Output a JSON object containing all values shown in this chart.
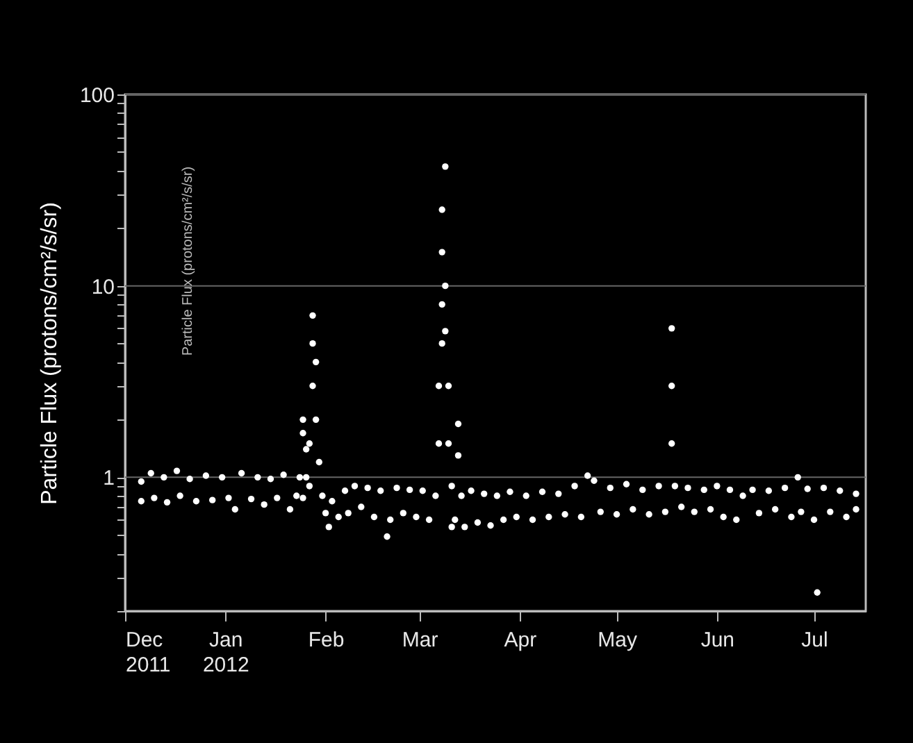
{
  "chart_data": {
    "type": "scatter",
    "ylabel": "Particle Flux (protons/cm²/s/sr)",
    "annotations": [
      "Particle Flux (protons/cm²/s/sr)"
    ],
    "log": "y",
    "grid": "y",
    "marker": "circle",
    "ylim": [
      0.2,
      100
    ],
    "yticks": [
      {
        "value": 0.2,
        "label": null
      },
      {
        "value": 0.3,
        "label": null
      },
      {
        "value": 0.4,
        "label": null
      },
      {
        "value": 0.5,
        "label": null
      },
      {
        "value": 0.6,
        "label": null
      },
      {
        "value": 0.7,
        "label": null
      },
      {
        "value": 0.8,
        "label": null
      },
      {
        "value": 0.9,
        "label": null
      },
      1,
      {
        "value": 2,
        "label": null
      },
      {
        "value": 3,
        "label": null
      },
      {
        "value": 4,
        "label": null
      },
      {
        "value": 5,
        "label": null
      },
      {
        "value": 6,
        "label": null
      },
      {
        "value": 7,
        "label": null
      },
      {
        "value": 8,
        "label": null
      },
      {
        "value": 9,
        "label": null
      },
      10,
      {
        "value": 20,
        "label": null
      },
      {
        "value": 30,
        "label": null
      },
      {
        "value": 40,
        "label": null
      },
      {
        "value": 50,
        "label": null
      },
      {
        "value": 60,
        "label": null
      },
      {
        "value": 70,
        "label": null
      },
      {
        "value": 80,
        "label": null
      },
      {
        "value": 90,
        "label": null
      },
      100
    ],
    "xlim": [
      "2011-12-01",
      "2012-07-17"
    ],
    "xticks": [
      {
        "value": "2011-12-01",
        "label": "Dec 2011"
      },
      {
        "value": "2012-01-01",
        "label": "Jan 2012"
      },
      {
        "value": "2012-02-01",
        "label": "Feb"
      },
      {
        "value": "2012-03-01",
        "label": "Mar"
      },
      {
        "value": "2012-04-01",
        "label": "Apr"
      },
      {
        "value": "2012-05-01",
        "label": "May"
      },
      {
        "value": "2012-06-01",
        "label": "Jun"
      },
      {
        "value": "2012-07-01",
        "label": "Jul"
      }
    ],
    "series": [
      {
        "color": "#ffffff",
        "x": [
          "2011-12-06",
          "2011-12-06",
          "2011-12-09",
          "2011-12-10",
          "2011-12-13",
          "2011-12-14",
          "2011-12-17",
          "2011-12-18",
          "2011-12-21",
          "2011-12-23",
          "2011-12-26",
          "2011-12-28",
          "2011-12-31",
          "2012-01-02",
          "2012-01-04",
          "2012-01-06",
          "2012-01-09",
          "2012-01-11",
          "2012-01-13",
          "2012-01-15",
          "2012-01-17",
          "2012-01-19",
          "2012-01-21",
          "2012-01-23",
          "2012-01-24",
          "2012-01-25",
          "2012-01-25",
          "2012-01-25",
          "2012-01-26",
          "2012-01-26",
          "2012-01-27",
          "2012-01-27",
          "2012-01-28",
          "2012-01-28",
          "2012-01-28",
          "2012-01-29",
          "2012-01-29",
          "2012-01-30",
          "2012-01-31",
          "2012-02-01",
          "2012-02-02",
          "2012-02-03",
          "2012-02-05",
          "2012-02-07",
          "2012-02-08",
          "2012-02-10",
          "2012-02-12",
          "2012-02-14",
          "2012-02-16",
          "2012-02-18",
          "2012-02-20",
          "2012-02-21",
          "2012-02-23",
          "2012-02-25",
          "2012-02-27",
          "2012-02-29",
          "2012-03-02",
          "2012-03-04",
          "2012-03-06",
          "2012-03-07",
          "2012-03-07",
          "2012-03-08",
          "2012-03-08",
          "2012-03-08",
          "2012-03-08",
          "2012-03-09",
          "2012-03-09",
          "2012-03-09",
          "2012-03-10",
          "2012-03-10",
          "2012-03-11",
          "2012-03-11",
          "2012-03-12",
          "2012-03-13",
          "2012-03-13",
          "2012-03-14",
          "2012-03-15",
          "2012-03-17",
          "2012-03-19",
          "2012-03-21",
          "2012-03-23",
          "2012-03-25",
          "2012-03-27",
          "2012-03-29",
          "2012-03-31",
          "2012-04-03",
          "2012-04-05",
          "2012-04-08",
          "2012-04-10",
          "2012-04-13",
          "2012-04-15",
          "2012-04-18",
          "2012-04-20",
          "2012-04-22",
          "2012-04-24",
          "2012-04-26",
          "2012-04-29",
          "2012-05-01",
          "2012-05-04",
          "2012-05-06",
          "2012-05-09",
          "2012-05-11",
          "2012-05-14",
          "2012-05-16",
          "2012-05-18",
          "2012-05-18",
          "2012-05-18",
          "2012-05-19",
          "2012-05-21",
          "2012-05-23",
          "2012-05-25",
          "2012-05-28",
          "2012-05-30",
          "2012-06-01",
          "2012-06-03",
          "2012-06-05",
          "2012-06-07",
          "2012-06-09",
          "2012-06-12",
          "2012-06-14",
          "2012-06-17",
          "2012-06-19",
          "2012-06-22",
          "2012-06-24",
          "2012-06-26",
          "2012-06-27",
          "2012-06-29",
          "2012-07-01",
          "2012-07-02",
          "2012-07-04",
          "2012-07-06",
          "2012-07-09",
          "2012-07-11",
          "2012-07-14",
          "2012-07-14"
        ],
        "values": [
          0.95,
          0.75,
          1.05,
          0.78,
          1.0,
          0.74,
          1.08,
          0.8,
          0.98,
          0.75,
          1.02,
          0.76,
          1.0,
          0.78,
          0.68,
          1.05,
          0.77,
          1.0,
          0.72,
          0.98,
          0.78,
          1.03,
          0.68,
          0.8,
          1.0,
          0.78,
          1.7,
          2.0,
          1.4,
          1.0,
          0.9,
          1.5,
          3.0,
          5.0,
          7.0,
          4.0,
          2.0,
          1.2,
          0.8,
          0.65,
          0.55,
          0.75,
          0.62,
          0.85,
          0.65,
          0.9,
          0.7,
          0.88,
          0.62,
          0.85,
          0.49,
          0.6,
          0.88,
          0.65,
          0.86,
          0.62,
          0.85,
          0.6,
          0.8,
          1.5,
          3.0,
          5.0,
          8.0,
          15,
          25,
          42,
          10,
          5.8,
          3.0,
          1.5,
          0.9,
          0.55,
          0.6,
          1.9,
          1.3,
          0.8,
          0.55,
          0.85,
          0.58,
          0.82,
          0.56,
          0.8,
          0.6,
          0.84,
          0.62,
          0.8,
          0.6,
          0.84,
          0.62,
          0.82,
          0.64,
          0.9,
          0.62,
          1.02,
          0.96,
          0.66,
          0.88,
          0.64,
          0.92,
          0.68,
          0.86,
          0.64,
          0.9,
          0.66,
          1.5,
          3.0,
          6.0,
          0.9,
          0.7,
          0.88,
          0.66,
          0.86,
          0.68,
          0.9,
          0.62,
          0.86,
          0.6,
          0.8,
          0.86,
          0.65,
          0.85,
          0.68,
          0.88,
          0.62,
          1.0,
          0.66,
          0.87,
          0.6,
          0.25,
          0.88,
          0.66,
          0.85,
          0.62,
          0.82,
          0.68
        ]
      }
    ]
  }
}
